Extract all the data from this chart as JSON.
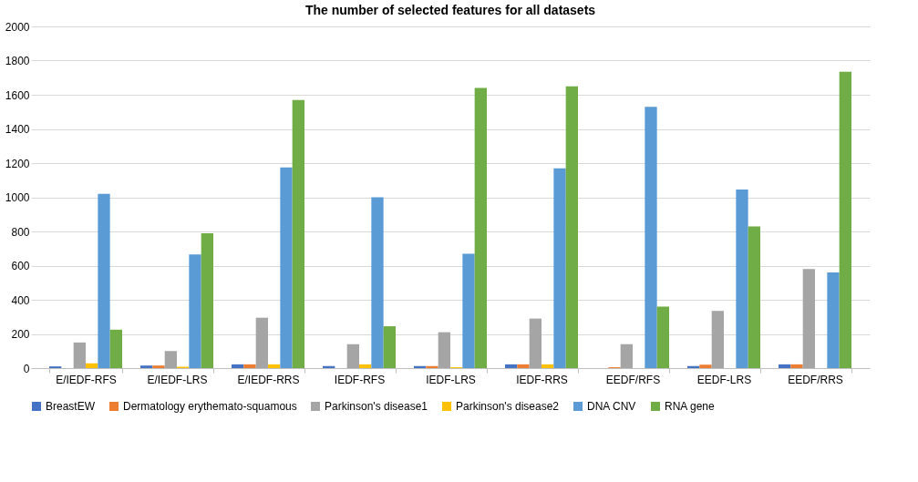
{
  "chart_data": {
    "type": "bar",
    "title": "The number of selected features for all datasets",
    "categories": [
      "E/IEDF-RFS",
      "E/IEDF-LRS",
      "E/IEDF-RRS",
      "IEDF-RFS",
      "IEDF-LRS",
      "IEDF-RRS",
      "EEDF/RFS",
      "EEDF-LRS",
      "EEDF/RRS"
    ],
    "series": [
      {
        "name": "BreastEW",
        "color": "#4472c4",
        "values": [
          10,
          15,
          22,
          12,
          12,
          22,
          0,
          12,
          22
        ]
      },
      {
        "name": "Dermatology erythemato-squamous",
        "color": "#ed7d31",
        "values": [
          0,
          15,
          22,
          0,
          12,
          22,
          5,
          20,
          22
        ]
      },
      {
        "name": "Parkinson's disease1",
        "color": "#a5a5a5",
        "values": [
          150,
          100,
          295,
          140,
          210,
          290,
          140,
          335,
          580
        ]
      },
      {
        "name": "Parkinson's disease2",
        "color": "#ffc000",
        "values": [
          28,
          8,
          22,
          22,
          5,
          22,
          0,
          0,
          0
        ]
      },
      {
        "name": "DNA CNV",
        "color": "#5b9bd5",
        "values": [
          1020,
          665,
          1175,
          1000,
          670,
          1170,
          1530,
          1045,
          560
        ]
      },
      {
        "name": "RNA gene",
        "color": "#70ad47",
        "values": [
          225,
          790,
          1570,
          245,
          1640,
          1650,
          360,
          830,
          1735
        ]
      }
    ],
    "ylim": [
      0,
      2000
    ],
    "yticks": [
      0,
      200,
      400,
      600,
      800,
      1000,
      1200,
      1400,
      1600,
      1800,
      2000
    ],
    "grid": "y",
    "legend": "bottom"
  }
}
